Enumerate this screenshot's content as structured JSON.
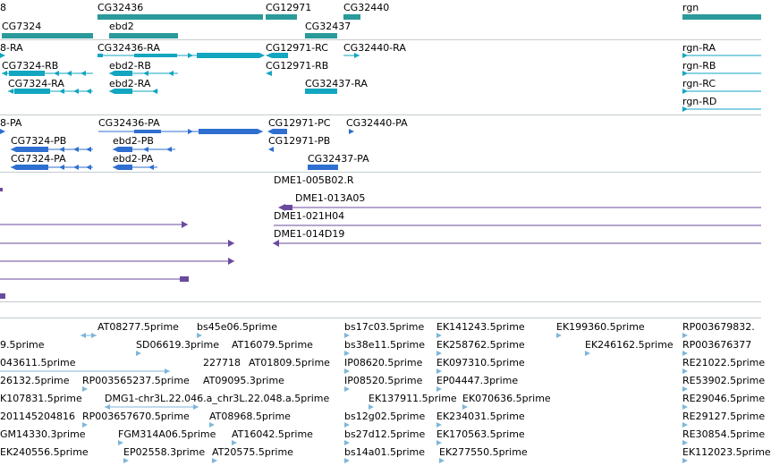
{
  "colors": {
    "gene": "#2a9a9a",
    "transcript": "#12a6c0",
    "protein": "#2e6fd0",
    "clone": "#6a4a9e",
    "est": "#7fb6d8",
    "separator": "#c4ccd0"
  },
  "tracks": {
    "gene_span": {
      "labels": [
        "8",
        "CG32436",
        "CG12971",
        "CG32440",
        "rgn",
        "CG7324",
        "ebd2",
        "CG32437"
      ]
    },
    "transcript": {
      "labels": [
        "8-RA",
        "CG32436-RA",
        "CG12971-RC",
        "CG32440-RA",
        "rgn-RA",
        "CG7324-RB",
        "ebd2-RB",
        "CG12971-RB",
        "rgn-RB",
        "CG7324-RA",
        "ebd2-RA",
        "CG32437-RA",
        "rgn-RC",
        "rgn-RD"
      ]
    },
    "protein": {
      "labels": [
        "8-PA",
        "CG32436-PA",
        "CG12971-PC",
        "CG32440-PA",
        "CG7324-PB",
        "ebd2-PB",
        "CG12971-PB",
        "CG7324-PA",
        "ebd2-PA",
        "CG32437-PA"
      ]
    },
    "clone": {
      "labels": [
        "DME1-005B02.R",
        "DME1-013A05",
        "DME1-021H04",
        "DME1-014D19"
      ]
    },
    "est": {
      "labels": [
        "AT08277.5prime",
        "bs45e06.5prime",
        "bs17c03.5prime",
        "EK141243.5prime",
        "EK199360.5prime",
        "RP003679832.",
        "9.5prime",
        "SD06619.3prime",
        "AT16079.5prime",
        "bs38e11.5prime",
        "EK258762.5prime",
        "EK246162.5prime",
        "RP003676377",
        "043611.5prime",
        "227718",
        "AT01809.5prime",
        "IP08620.5prime",
        "EK097310.5prime",
        "RE21022.5prime",
        "26132.5prime",
        "RP003565237.5prime",
        "AT09095.3prime",
        "IP08520.5prime",
        "EP04447.3prime",
        "RE53902.5prime",
        "K107831.5prime",
        "DMG1-chr3L.22.046.a_chr3L.22.048.a.5prime",
        "EK137911.5prime",
        "EK070636.5prime",
        "RE29046.5prime",
        "201145204816",
        "RP003657670.5prime",
        "AT08968.5prime",
        "bs12g02.5prime",
        "EK234031.5prime",
        "RE29127.5prime",
        "GM14330.3prime",
        "FGM314A06.5prime",
        "AT16042.5prime",
        "bs27d12.5prime",
        "EK170563.5prime",
        "RE30854.5prime",
        "EK240556.5prime",
        "EP02558.3prime",
        "AT20575.5prime",
        "bs14a01.5prime",
        "EK277550.5prime",
        "EK112023.5prime"
      ]
    }
  }
}
